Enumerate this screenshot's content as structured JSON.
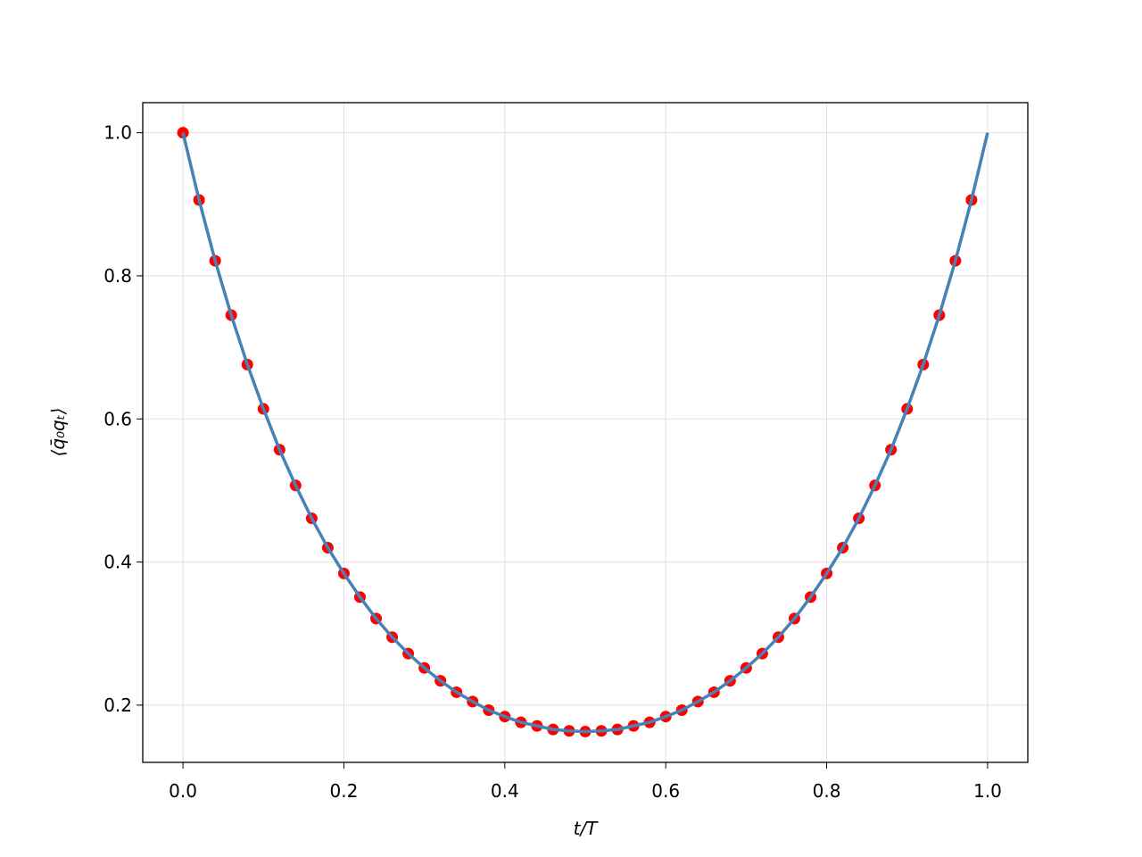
{
  "chart_data": {
    "type": "scatter",
    "xlabel": "t/T",
    "ylabel": "⟨q̄₀qₜ⟩",
    "xlim": [
      -0.05,
      1.05
    ],
    "ylim": [
      0.12,
      1.042
    ],
    "xticks": [
      {
        "value": 0,
        "label": "0.0"
      },
      0.2,
      0.4,
      0.6,
      0.8,
      {
        "value": 1,
        "label": "1.0"
      }
    ],
    "yticks": [
      0.2,
      0.4,
      0.6,
      0.8,
      {
        "value": 1,
        "label": "1.0"
      }
    ],
    "grid": true,
    "series": [
      {
        "type": "scatter",
        "color": "#ff0000",
        "x": [
          0,
          0.02,
          0.04,
          0.06,
          0.08,
          0.1,
          0.12,
          0.14,
          0.16,
          0.18,
          0.2,
          0.22,
          0.24,
          0.26,
          0.28,
          0.3,
          0.32,
          0.34,
          0.36,
          0.38,
          0.4,
          0.42,
          0.44,
          0.46,
          0.48,
          0.5,
          0.52,
          0.54,
          0.56,
          0.58,
          0.6,
          0.62,
          0.64,
          0.66,
          0.68,
          0.7,
          0.72,
          0.74,
          0.76,
          0.78,
          0.8,
          0.82,
          0.84,
          0.86,
          0.88,
          0.9,
          0.92,
          0.94,
          0.96,
          0.98
        ],
        "values": [
          1.0,
          0.906,
          0.821,
          0.745,
          0.676,
          0.614,
          0.557,
          0.507,
          0.461,
          0.42,
          0.384,
          0.351,
          0.321,
          0.295,
          0.272,
          0.252,
          0.234,
          0.218,
          0.205,
          0.193,
          0.184,
          0.176,
          0.171,
          0.166,
          0.164,
          0.163,
          0.164,
          0.166,
          0.171,
          0.176,
          0.184,
          0.193,
          0.205,
          0.218,
          0.234,
          0.252,
          0.272,
          0.295,
          0.321,
          0.351,
          0.384,
          0.42,
          0.461,
          0.507,
          0.557,
          0.614,
          0.676,
          0.745,
          0.821,
          0.906
        ]
      },
      {
        "type": "line",
        "color": "#4682b4",
        "x": [
          0,
          0.02,
          0.04,
          0.06,
          0.08,
          0.1,
          0.12,
          0.14,
          0.16,
          0.18,
          0.2,
          0.22,
          0.24,
          0.26,
          0.28,
          0.3,
          0.32,
          0.34,
          0.36,
          0.38,
          0.4,
          0.42,
          0.44,
          0.46,
          0.48,
          0.5,
          0.52,
          0.54,
          0.56,
          0.58,
          0.6,
          0.62,
          0.64,
          0.66,
          0.68,
          0.7,
          0.72,
          0.74,
          0.76,
          0.78,
          0.8,
          0.82,
          0.84,
          0.86,
          0.88,
          0.9,
          0.92,
          0.94,
          0.96,
          0.98,
          1
        ],
        "values": [
          1.0,
          0.906,
          0.821,
          0.745,
          0.676,
          0.614,
          0.557,
          0.507,
          0.461,
          0.42,
          0.384,
          0.351,
          0.321,
          0.295,
          0.272,
          0.252,
          0.234,
          0.218,
          0.205,
          0.193,
          0.184,
          0.176,
          0.171,
          0.166,
          0.164,
          0.163,
          0.164,
          0.166,
          0.171,
          0.176,
          0.184,
          0.193,
          0.205,
          0.218,
          0.234,
          0.252,
          0.272,
          0.295,
          0.321,
          0.351,
          0.384,
          0.42,
          0.461,
          0.507,
          0.557,
          0.614,
          0.676,
          0.745,
          0.821,
          0.906,
          1.0
        ]
      }
    ]
  }
}
